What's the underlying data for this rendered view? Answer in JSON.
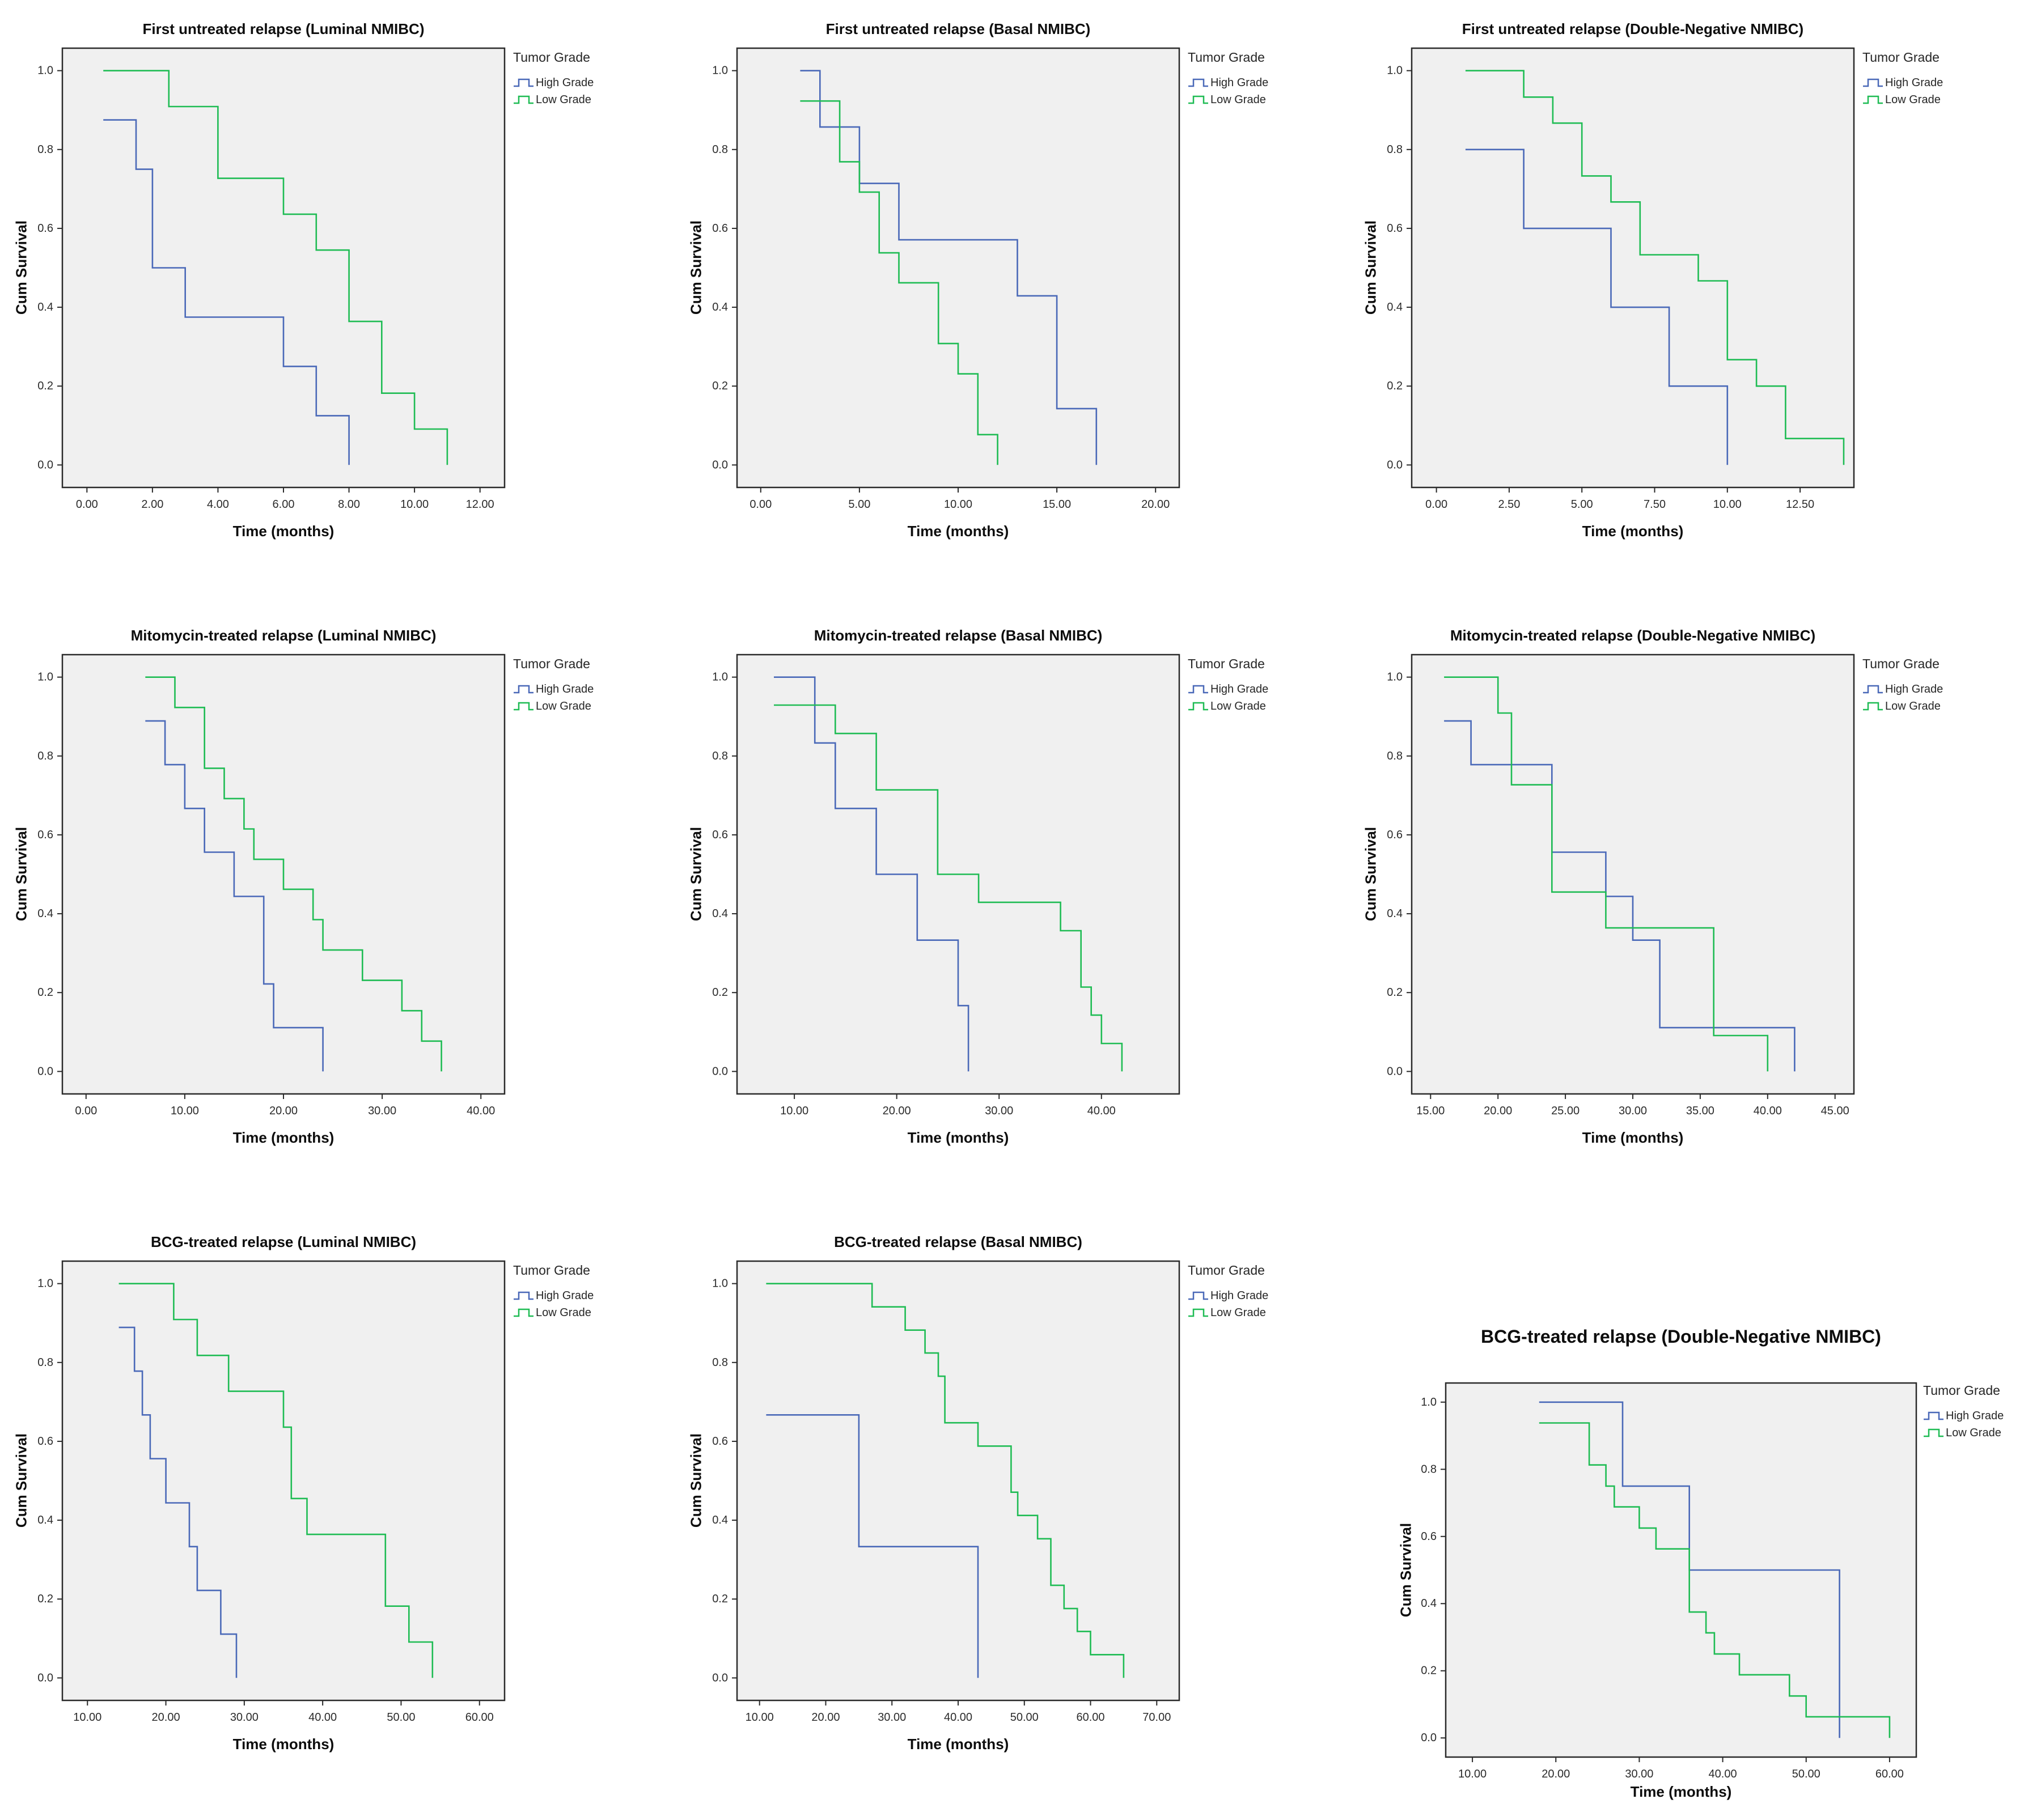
{
  "colors": {
    "high_grade": "#4a69b8",
    "low_grade": "#1fbc54",
    "plot_background": "#f0f0f0",
    "axis": "#2a2a2a",
    "tick_text": "#2b2b2b"
  },
  "legend": {
    "title": "Tumor Grade",
    "entries": [
      {
        "label": "High Grade",
        "series": "high_grade"
      },
      {
        "label": "Low Grade",
        "series": "low_grade"
      }
    ]
  },
  "chart_data": [
    {
      "type": "line",
      "subtype": "kaplan-meier-step",
      "title": "First untreated relapse (Luminal NMIBC)",
      "xlabel": "Time (months)",
      "ylabel": "Cum Survival",
      "layout": "default",
      "grid": false,
      "legend_position": "right",
      "x_domain": [
        -0.75,
        12.75
      ],
      "y_domain": [
        0,
        1
      ],
      "x_ticks": [
        0,
        2,
        4,
        6,
        8,
        10,
        12
      ],
      "y_ticks": [
        0.0,
        0.2,
        0.4,
        0.6,
        0.8,
        1.0
      ],
      "series": [
        {
          "name": "High Grade",
          "color_key": "high_grade",
          "start": [
            0.5,
            0.875
          ],
          "steps": [
            [
              1.5,
              0.75
            ],
            [
              2,
              0.5
            ],
            [
              3,
              0.375
            ],
            [
              6,
              0.25
            ],
            [
              7,
              0.125
            ],
            [
              8,
              0
            ]
          ]
        },
        {
          "name": "Low Grade",
          "color_key": "low_grade",
          "start": [
            0.5,
            1.0
          ],
          "steps": [
            [
              2.5,
              0.909
            ],
            [
              4,
              0.727
            ],
            [
              6,
              0.636
            ],
            [
              7,
              0.545
            ],
            [
              8,
              0.364
            ],
            [
              9,
              0.182
            ],
            [
              10,
              0.091
            ],
            [
              11,
              0
            ]
          ]
        }
      ]
    },
    {
      "type": "line",
      "subtype": "kaplan-meier-step",
      "title": "First untreated relapse (Basal NMIBC)",
      "xlabel": "Time (months)",
      "ylabel": "Cum Survival",
      "layout": "default",
      "grid": false,
      "legend_position": "right",
      "x_domain": [
        -1.2,
        21.2
      ],
      "y_domain": [
        0,
        1
      ],
      "x_ticks": [
        0,
        5,
        10,
        15,
        20
      ],
      "y_ticks": [
        0.0,
        0.2,
        0.4,
        0.6,
        0.8,
        1.0
      ],
      "series": [
        {
          "name": "High Grade",
          "color_key": "high_grade",
          "start": [
            2,
            1.0
          ],
          "steps": [
            [
              3,
              0.857
            ],
            [
              5,
              0.714
            ],
            [
              7,
              0.571
            ],
            [
              13,
              0.429
            ],
            [
              15,
              0.143
            ],
            [
              17,
              0
            ]
          ]
        },
        {
          "name": "Low Grade",
          "color_key": "low_grade",
          "start": [
            2,
            0.923
          ],
          "steps": [
            [
              4,
              0.769
            ],
            [
              5,
              0.692
            ],
            [
              6,
              0.538
            ],
            [
              7,
              0.462
            ],
            [
              9,
              0.308
            ],
            [
              10,
              0.231
            ],
            [
              11,
              0.077
            ],
            [
              12,
              0
            ]
          ]
        }
      ]
    },
    {
      "type": "line",
      "subtype": "kaplan-meier-step",
      "title": "First untreated relapse (Double-Negative NMIBC)",
      "xlabel": "Time (months)",
      "ylabel": "Cum Survival",
      "layout": "default",
      "grid": false,
      "legend_position": "right",
      "x_domain": [
        -0.85,
        14.35
      ],
      "y_domain": [
        0,
        1
      ],
      "x_ticks": [
        0,
        2.5,
        5,
        7.5,
        10,
        12.5
      ],
      "y_ticks": [
        0.0,
        0.2,
        0.4,
        0.6,
        0.8,
        1.0
      ],
      "series": [
        {
          "name": "High Grade",
          "color_key": "high_grade",
          "start": [
            1,
            0.8
          ],
          "steps": [
            [
              3,
              0.6
            ],
            [
              6,
              0.4
            ],
            [
              8,
              0.2
            ],
            [
              10,
              0
            ]
          ]
        },
        {
          "name": "Low Grade",
          "color_key": "low_grade",
          "start": [
            1,
            1.0
          ],
          "steps": [
            [
              3,
              0.933
            ],
            [
              4,
              0.867
            ],
            [
              5,
              0.733
            ],
            [
              6,
              0.667
            ],
            [
              7,
              0.533
            ],
            [
              9,
              0.467
            ],
            [
              10,
              0.267
            ],
            [
              11,
              0.2
            ],
            [
              12,
              0.067
            ],
            [
              14,
              0
            ]
          ]
        }
      ]
    },
    {
      "type": "line",
      "subtype": "kaplan-meier-step",
      "title": "Mitomycin-treated relapse (Luminal NMIBC)",
      "xlabel": "Time (months)",
      "ylabel": "Cum Survival",
      "layout": "default",
      "grid": false,
      "legend_position": "right",
      "x_domain": [
        -2.4,
        42.4
      ],
      "y_domain": [
        0,
        1
      ],
      "x_ticks": [
        0,
        10,
        20,
        30,
        40
      ],
      "y_ticks": [
        0.0,
        0.2,
        0.4,
        0.6,
        0.8,
        1.0
      ],
      "series": [
        {
          "name": "High Grade",
          "color_key": "high_grade",
          "start": [
            6,
            0.889
          ],
          "steps": [
            [
              8,
              0.778
            ],
            [
              10,
              0.667
            ],
            [
              12,
              0.556
            ],
            [
              15,
              0.444
            ],
            [
              18,
              0.222
            ],
            [
              19,
              0.111
            ],
            [
              24,
              0
            ]
          ]
        },
        {
          "name": "Low Grade",
          "color_key": "low_grade",
          "start": [
            6,
            1.0
          ],
          "steps": [
            [
              9,
              0.923
            ],
            [
              12,
              0.769
            ],
            [
              14,
              0.692
            ],
            [
              16,
              0.615
            ],
            [
              17,
              0.538
            ],
            [
              20,
              0.462
            ],
            [
              23,
              0.385
            ],
            [
              24,
              0.308
            ],
            [
              28,
              0.231
            ],
            [
              32,
              0.154
            ],
            [
              34,
              0.077
            ],
            [
              36,
              0
            ]
          ]
        }
      ]
    },
    {
      "type": "line",
      "subtype": "kaplan-meier-step",
      "title": "Mitomycin-treated relapse (Basal NMIBC)",
      "xlabel": "Time (months)",
      "ylabel": "Cum Survival",
      "layout": "default",
      "grid": false,
      "legend_position": "right",
      "x_domain": [
        4.4,
        47.6
      ],
      "y_domain": [
        0,
        1
      ],
      "x_ticks": [
        10,
        20,
        30,
        40
      ],
      "y_ticks": [
        0.0,
        0.2,
        0.4,
        0.6,
        0.8,
        1.0
      ],
      "series": [
        {
          "name": "High Grade",
          "color_key": "high_grade",
          "start": [
            8,
            1.0
          ],
          "steps": [
            [
              12,
              0.833
            ],
            [
              14,
              0.667
            ],
            [
              18,
              0.5
            ],
            [
              22,
              0.333
            ],
            [
              26,
              0.167
            ],
            [
              27,
              0
            ]
          ]
        },
        {
          "name": "Low Grade",
          "color_key": "low_grade",
          "start": [
            8,
            0.929
          ],
          "steps": [
            [
              14,
              0.857
            ],
            [
              18,
              0.714
            ],
            [
              24,
              0.5
            ],
            [
              28,
              0.429
            ],
            [
              36,
              0.357
            ],
            [
              38,
              0.214
            ],
            [
              39,
              0.143
            ],
            [
              40,
              0.071
            ],
            [
              42,
              0
            ]
          ]
        }
      ]
    },
    {
      "type": "line",
      "subtype": "kaplan-meier-step",
      "title": "Mitomycin-treated relapse (Double-Negative NMIBC)",
      "xlabel": "Time (months)",
      "ylabel": "Cum Survival",
      "layout": "default",
      "grid": false,
      "legend_position": "right",
      "x_domain": [
        13.6,
        46.4
      ],
      "y_domain": [
        0,
        1
      ],
      "x_ticks": [
        15,
        20,
        25,
        30,
        35,
        40,
        45
      ],
      "y_ticks": [
        0.0,
        0.2,
        0.4,
        0.6,
        0.8,
        1.0
      ],
      "series": [
        {
          "name": "High Grade",
          "color_key": "high_grade",
          "start": [
            16,
            0.889
          ],
          "steps": [
            [
              18,
              0.778
            ],
            [
              24,
              0.556
            ],
            [
              28,
              0.444
            ],
            [
              30,
              0.333
            ],
            [
              32,
              0.111
            ],
            [
              42,
              0
            ]
          ]
        },
        {
          "name": "Low Grade",
          "color_key": "low_grade",
          "start": [
            16,
            1.0
          ],
          "steps": [
            [
              20,
              0.909
            ],
            [
              21,
              0.727
            ],
            [
              24,
              0.455
            ],
            [
              28,
              0.364
            ],
            [
              36,
              0.091
            ],
            [
              40,
              0
            ]
          ]
        }
      ]
    },
    {
      "type": "line",
      "subtype": "kaplan-meier-step",
      "title": "BCG-treated relapse (Luminal NMIBC)",
      "xlabel": "Time (months)",
      "ylabel": "Cum Survival",
      "layout": "default",
      "grid": false,
      "legend_position": "right",
      "x_domain": [
        6.8,
        63.2
      ],
      "y_domain": [
        0,
        1
      ],
      "x_ticks": [
        10,
        20,
        30,
        40,
        50,
        60
      ],
      "y_ticks": [
        0.0,
        0.2,
        0.4,
        0.6,
        0.8,
        1.0
      ],
      "series": [
        {
          "name": "High Grade",
          "color_key": "high_grade",
          "start": [
            14,
            0.889
          ],
          "steps": [
            [
              16,
              0.778
            ],
            [
              17,
              0.667
            ],
            [
              18,
              0.556
            ],
            [
              20,
              0.444
            ],
            [
              23,
              0.333
            ],
            [
              24,
              0.222
            ],
            [
              27,
              0.111
            ],
            [
              29,
              0
            ]
          ]
        },
        {
          "name": "Low Grade",
          "color_key": "low_grade",
          "start": [
            14,
            1.0
          ],
          "steps": [
            [
              21,
              0.909
            ],
            [
              24,
              0.818
            ],
            [
              28,
              0.727
            ],
            [
              35,
              0.636
            ],
            [
              36,
              0.455
            ],
            [
              38,
              0.364
            ],
            [
              48,
              0.182
            ],
            [
              51,
              0.091
            ],
            [
              54,
              0
            ]
          ]
        }
      ]
    },
    {
      "type": "line",
      "subtype": "kaplan-meier-step",
      "title": "BCG-treated relapse (Basal NMIBC)",
      "xlabel": "Time (months)",
      "ylabel": "Cum Survival",
      "layout": "default",
      "grid": false,
      "legend_position": "right",
      "x_domain": [
        6.6,
        73.4
      ],
      "y_domain": [
        0,
        1
      ],
      "x_ticks": [
        10,
        20,
        30,
        40,
        50,
        60,
        70
      ],
      "y_ticks": [
        0.0,
        0.2,
        0.4,
        0.6,
        0.8,
        1.0
      ],
      "series": [
        {
          "name": "High Grade",
          "color_key": "high_grade",
          "start": [
            11,
            0.667
          ],
          "steps": [
            [
              25,
              0.333
            ],
            [
              43,
              0
            ]
          ]
        },
        {
          "name": "Low Grade",
          "color_key": "low_grade",
          "start": [
            11,
            1.0
          ],
          "steps": [
            [
              27,
              0.941
            ],
            [
              32,
              0.882
            ],
            [
              35,
              0.824
            ],
            [
              37,
              0.765
            ],
            [
              38,
              0.647
            ],
            [
              43,
              0.588
            ],
            [
              48,
              0.471
            ],
            [
              49,
              0.412
            ],
            [
              52,
              0.353
            ],
            [
              54,
              0.235
            ],
            [
              56,
              0.176
            ],
            [
              58,
              0.118
            ],
            [
              60,
              0.059
            ],
            [
              65,
              0
            ]
          ]
        }
      ]
    },
    {
      "type": "line",
      "subtype": "kaplan-meier-step",
      "title": "BCG-treated relapse (Double-Negative NMIBC)",
      "xlabel": "Time (months)",
      "ylabel": "Cum Survival",
      "layout": "compact",
      "grid": false,
      "legend_position": "right",
      "x_domain": [
        6.8,
        63.2
      ],
      "y_domain": [
        0,
        1
      ],
      "x_ticks": [
        10,
        20,
        30,
        40,
        50,
        60
      ],
      "y_ticks": [
        0.0,
        0.2,
        0.4,
        0.6,
        0.8,
        1.0
      ],
      "series": [
        {
          "name": "High Grade",
          "color_key": "high_grade",
          "start": [
            18,
            1.0
          ],
          "steps": [
            [
              28,
              0.75
            ],
            [
              36,
              0.5
            ],
            [
              54,
              0
            ]
          ]
        },
        {
          "name": "Low Grade",
          "color_key": "low_grade",
          "start": [
            18,
            0.938
          ],
          "steps": [
            [
              24,
              0.813
            ],
            [
              26,
              0.75
            ],
            [
              27,
              0.688
            ],
            [
              30,
              0.625
            ],
            [
              32,
              0.563
            ],
            [
              36,
              0.375
            ],
            [
              38,
              0.313
            ],
            [
              39,
              0.25
            ],
            [
              42,
              0.188
            ],
            [
              48,
              0.125
            ],
            [
              50,
              0.063
            ],
            [
              60,
              0
            ]
          ]
        }
      ]
    }
  ]
}
